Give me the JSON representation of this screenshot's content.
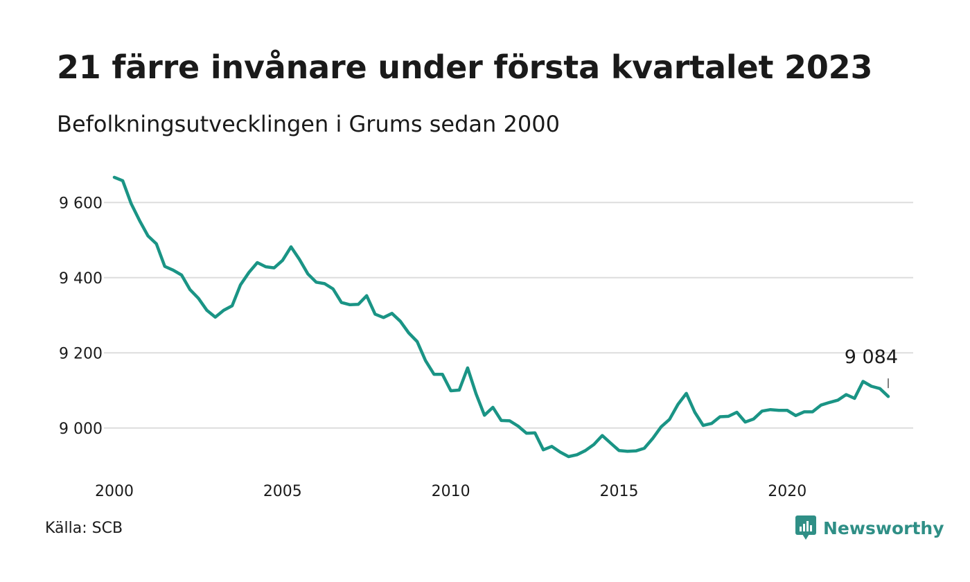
{
  "colors": {
    "line": "#1a9485",
    "grid": "#dddddd",
    "text": "#1a1a1a",
    "brand": "#2f8f86"
  },
  "header": {
    "title": "21 färre invånare under första kvartalet 2023",
    "subtitle": "Befolkningsutvecklingen i Grums sedan 2000"
  },
  "footer": {
    "source": "Källa: SCB",
    "brand": "Newsworthy",
    "brand_icon": "bar-chart-bubble-icon"
  },
  "chart_data": {
    "type": "line",
    "title": "21 färre invånare under första kvartalet 2023",
    "subtitle": "Befolkningsutvecklingen i Grums sedan 2000",
    "xlabel": "",
    "ylabel": "",
    "xlim": [
      2000,
      2023
    ],
    "ylim": [
      8900,
      9700
    ],
    "x_ticks": [
      2000,
      2005,
      2010,
      2015,
      2020
    ],
    "x_tick_labels": [
      "2000",
      "2005",
      "2010",
      "2015",
      "2020"
    ],
    "y_ticks": [
      9000,
      9200,
      9400,
      9600
    ],
    "y_tick_labels": [
      "9 000",
      "9 200",
      "9 400",
      "9 600"
    ],
    "grid": "horizontal",
    "annotation": {
      "x": 2023,
      "y": 9084,
      "text": "9 084"
    },
    "series": [
      {
        "x": [
          2000.0,
          2000.25,
          2000.5,
          2000.75,
          2001.0,
          2001.25,
          2001.5,
          2001.75,
          2002.0,
          2002.25,
          2002.5,
          2002.75,
          2003.0,
          2003.25,
          2003.5,
          2003.75,
          2004.0,
          2004.25,
          2004.5,
          2004.75,
          2005.0,
          2005.25,
          2005.5,
          2005.75,
          2006.0,
          2006.25,
          2006.5,
          2006.75,
          2007.0,
          2007.25,
          2007.5,
          2007.75,
          2008.0,
          2008.25,
          2008.5,
          2008.75,
          2009.0,
          2009.25,
          2009.5,
          2009.75,
          2010.0,
          2010.25,
          2010.5,
          2010.75,
          2011.0,
          2011.25,
          2011.5,
          2011.75,
          2012.0,
          2012.25,
          2012.5,
          2012.75,
          2013.0,
          2013.25,
          2013.5,
          2013.75,
          2014.0,
          2014.25,
          2014.5,
          2014.75,
          2015.0,
          2015.25,
          2015.5,
          2015.75,
          2016.0,
          2016.25,
          2016.5,
          2016.75,
          2017.0,
          2017.25,
          2017.5,
          2017.75,
          2018.0,
          2018.25,
          2018.5,
          2018.75,
          2019.0,
          2019.25,
          2019.5,
          2019.75,
          2020.0,
          2020.25,
          2020.5,
          2020.75,
          2021.0,
          2021.25,
          2021.5,
          2021.75,
          2022.0,
          2022.25,
          2022.5,
          2022.75,
          2023.0
        ],
        "values": [
          9667,
          9658,
          9597,
          9552,
          9511,
          9490,
          9430,
          9420,
          9407,
          9368,
          9345,
          9313,
          9295,
          9313,
          9325,
          9381,
          9414,
          9440,
          9429,
          9426,
          9446,
          9482,
          9449,
          9410,
          9388,
          9384,
          9370,
          9334,
          9328,
          9329,
          9352,
          9303,
          9294,
          9305,
          9284,
          9253,
          9230,
          9179,
          9143,
          9143,
          9099,
          9101,
          9160,
          9091,
          9034,
          9055,
          9020,
          9019,
          9005,
          8986,
          8987,
          8942,
          8951,
          8936,
          8924,
          8929,
          8940,
          8956,
          8980,
          8960,
          8940,
          8938,
          8939,
          8946,
          8972,
          9003,
          9023,
          9063,
          9092,
          9042,
          9007,
          9012,
          9030,
          9031,
          9042,
          9016,
          9024,
          9045,
          9049,
          9047,
          9047,
          9033,
          9043,
          9043,
          9061,
          9068,
          9074,
          9089,
          9079,
          9124,
          9111,
          9105,
          9084
        ]
      }
    ]
  }
}
